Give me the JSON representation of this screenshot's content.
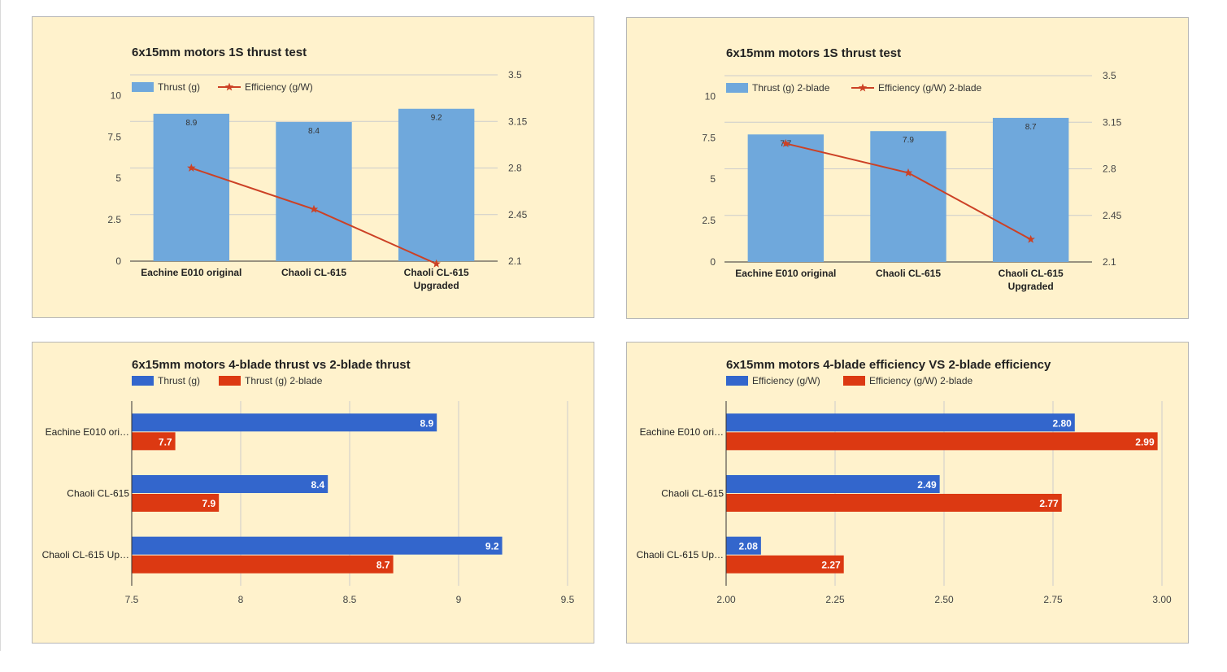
{
  "colors": {
    "panel_bg": "#fff2cc",
    "bar_light_blue": "#6fa8dc",
    "line_red": "#cc4125",
    "bar_blue": "#3366cc",
    "bar_red": "#dc3912",
    "grid": "#cccccc"
  },
  "chart_data": [
    {
      "type": "bar",
      "title": "6x15mm motors 1S thrust test",
      "categories": [
        "Eachine E010 original",
        "Chaoli CL-615",
        "Chaoli CL-615 Upgraded"
      ],
      "category_lines": [
        [
          "Eachine E010 original"
        ],
        [
          "Chaoli CL-615"
        ],
        [
          "Chaoli CL-615",
          "Upgraded"
        ]
      ],
      "series": [
        {
          "name": "Thrust (g)",
          "kind": "bar",
          "axis": "left",
          "values": [
            8.9,
            8.4,
            9.2
          ],
          "labels": [
            "8.9",
            "8.4",
            "9.2"
          ]
        },
        {
          "name": "Efficiency (g/W)",
          "kind": "line",
          "axis": "right",
          "values": [
            2.8,
            2.49,
            2.08
          ]
        }
      ],
      "y_left": {
        "min": 0,
        "max": 11.25,
        "ticks": [
          "0",
          "2.5",
          "5",
          "7.5",
          "10"
        ]
      },
      "y_right": {
        "min": 2.1,
        "max": 3.5,
        "ticks": [
          "2.1",
          "2.45",
          "2.8",
          "3.15",
          "3.5"
        ]
      },
      "legend": "top",
      "grid": true
    },
    {
      "type": "bar",
      "title": "6x15mm motors 1S thrust test",
      "categories": [
        "Eachine E010 original",
        "Chaoli CL-615",
        "Chaoli CL-615 Upgraded"
      ],
      "category_lines": [
        [
          "Eachine E010 original"
        ],
        [
          "Chaoli CL-615"
        ],
        [
          "Chaoli CL-615",
          "Upgraded"
        ]
      ],
      "series": [
        {
          "name": "Thrust (g) 2-blade",
          "kind": "bar",
          "axis": "left",
          "values": [
            7.7,
            7.9,
            8.7
          ],
          "labels": [
            "7.7",
            "7.9",
            "8.7"
          ]
        },
        {
          "name": "Efficiency (g/W) 2-blade",
          "kind": "line",
          "axis": "right",
          "values": [
            2.99,
            2.77,
            2.27
          ]
        }
      ],
      "y_left": {
        "min": 0,
        "max": 11.25,
        "ticks": [
          "0",
          "2.5",
          "5",
          "7.5",
          "10"
        ]
      },
      "y_right": {
        "min": 2.1,
        "max": 3.5,
        "ticks": [
          "2.1",
          "2.45",
          "2.8",
          "3.15",
          "3.5"
        ]
      },
      "legend": "top",
      "grid": true
    },
    {
      "type": "bar",
      "orientation": "horizontal",
      "title": "6x15mm motors 4-blade thrust vs 2-blade thrust",
      "categories": [
        "Eachine E010 ori…",
        "Chaoli CL-615",
        "Chaoli CL-615 Up…"
      ],
      "series": [
        {
          "name": "Thrust (g)",
          "values": [
            8.9,
            8.4,
            9.2
          ],
          "labels": [
            "8.9",
            "8.4",
            "9.2"
          ]
        },
        {
          "name": "Thrust (g) 2-blade",
          "values": [
            7.7,
            7.9,
            8.7
          ],
          "labels": [
            "7.7",
            "7.9",
            "8.7"
          ]
        }
      ],
      "x_axis": {
        "min": 7.5,
        "max": 9.5,
        "ticks": [
          "7.5",
          "8",
          "8.5",
          "9",
          "9.5"
        ]
      },
      "legend": "top",
      "grid": true
    },
    {
      "type": "bar",
      "orientation": "horizontal",
      "title": "6x15mm motors 4-blade efficiency VS 2-blade efficiency",
      "categories": [
        "Eachine E010 ori…",
        "Chaoli CL-615",
        "Chaoli CL-615 Up…"
      ],
      "series": [
        {
          "name": "Efficiency (g/W)",
          "values": [
            2.8,
            2.49,
            2.08
          ],
          "labels": [
            "2.80",
            "2.49",
            "2.08"
          ]
        },
        {
          "name": "Efficiency (g/W) 2-blade",
          "values": [
            2.99,
            2.77,
            2.27
          ],
          "labels": [
            "2.99",
            "2.77",
            "2.27"
          ]
        }
      ],
      "x_axis": {
        "min": 2.0,
        "max": 3.0,
        "ticks": [
          "2.00",
          "2.25",
          "2.50",
          "2.75",
          "3.00"
        ]
      },
      "legend": "top",
      "grid": true
    }
  ]
}
